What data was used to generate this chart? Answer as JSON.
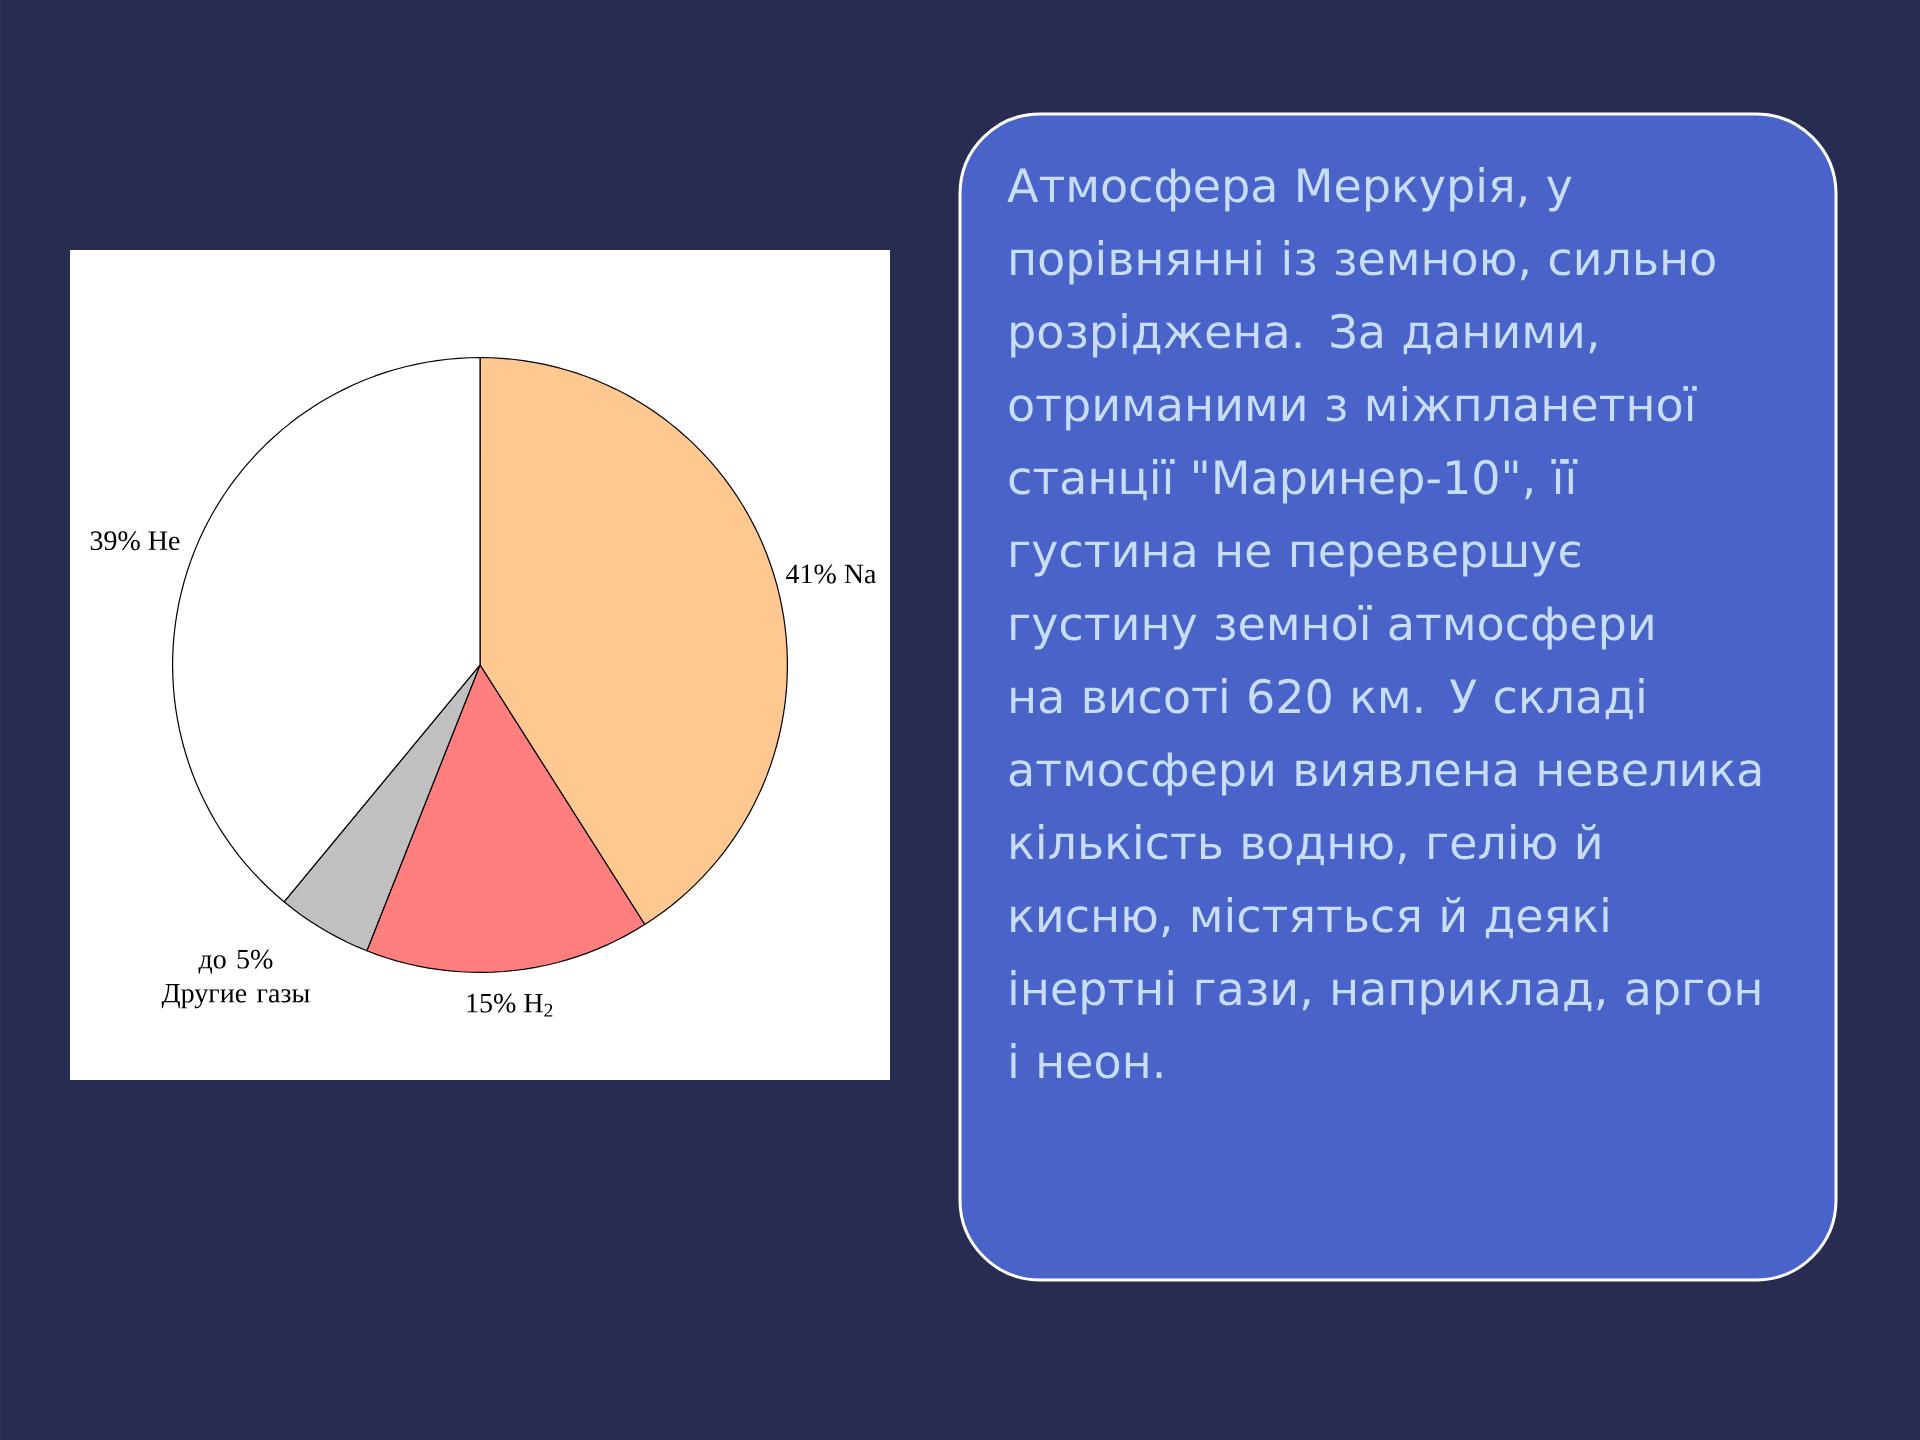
{
  "chart_data": {
    "type": "pie",
    "categories": [
      "41% Na",
      "15% H$_{2}$",
      "до 5% Другие газы",
      "39% He"
    ],
    "values": [
      41,
      15,
      5,
      39
    ],
    "colors": [
      "#ffc890",
      "#ff7f7f",
      "#c0c0c0",
      "#ffffff"
    ],
    "annotations": [
      "Атмосфера Меркурія, у порівнянні із земною, сильно розріджена. За даними, отриманими з міжпланетної станції \"Маринер-10\", її густина не перевершує густину земної атмосфери на висоті 620 км. У складі атмосфери виявлена невелика кількість водню, гелію й кисню, містяться й деякі інертні гази, наприклад, аргон і неон."
    ]
  }
}
